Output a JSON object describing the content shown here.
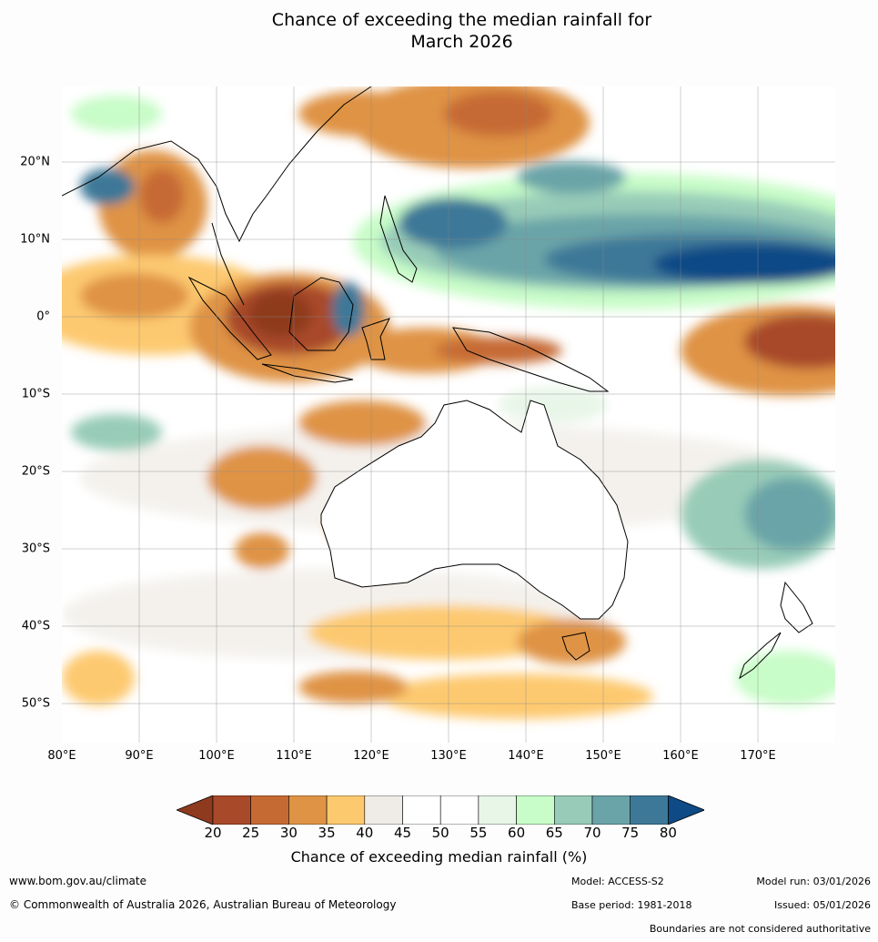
{
  "title_line1": "Chance of exceeding the median rainfall for",
  "title_line2": "March 2026",
  "lat_labels": [
    "20°N",
    "10°N",
    "0°",
    "10°S",
    "20°S",
    "30°S",
    "40°S",
    "50°S"
  ],
  "lon_labels": [
    "80°E",
    "90°E",
    "100°E",
    "110°E",
    "120°E",
    "130°E",
    "140°E",
    "150°E",
    "160°E",
    "170°E"
  ],
  "colorbar": {
    "ticks": [
      "20",
      "25",
      "30",
      "35",
      "40",
      "45",
      "50",
      "55",
      "60",
      "65",
      "70",
      "75",
      "80"
    ],
    "colors": [
      "#8e3a1f",
      "#a8492a",
      "#c66a34",
      "#df9345",
      "#fdc96f",
      "#efebe6",
      "#ffffff",
      "#ffffff",
      "#e8f6e8",
      "#c8fcc8",
      "#98ccb8",
      "#6aa4a8",
      "#3d7898",
      "#0d4a86"
    ],
    "label": "Chance of exceeding median rainfall (%)"
  },
  "footer": {
    "website": "www.bom.gov.au/climate",
    "copyright": "© Commonwealth of Australia 2026, Australian Bureau of Meteorology",
    "model": "Model: ACCESS-S2",
    "base_period": "Base period: 1981-2018",
    "model_run": "Model run: 03/01/2026",
    "issued": "Issued: 05/01/2026",
    "disclaimer": "Boundaries are not considered authoritative"
  }
}
